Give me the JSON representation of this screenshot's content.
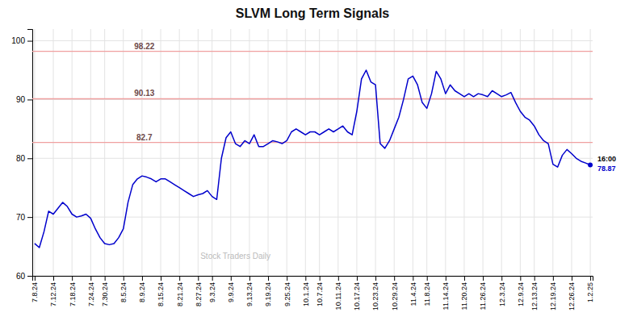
{
  "chart_data": {
    "type": "line",
    "title": "SLVM Long Term Signals",
    "categories": [
      "7.8.24",
      null,
      null,
      null,
      "7.12.24",
      null,
      null,
      null,
      "7.18.24",
      null,
      null,
      null,
      "7.24.24",
      null,
      null,
      "7.30.24",
      null,
      null,
      null,
      "8.5.24",
      null,
      null,
      null,
      "8.9.24",
      null,
      null,
      null,
      "8.15.24",
      null,
      null,
      null,
      "8.21.24",
      null,
      null,
      null,
      "8.27.24",
      null,
      null,
      "9.3.24",
      null,
      null,
      null,
      "9.9.24",
      null,
      null,
      null,
      "9.13.24",
      null,
      null,
      null,
      "9.19.24",
      null,
      null,
      null,
      "9.25.24",
      null,
      null,
      null,
      "10.1.24",
      null,
      null,
      "10.7.24",
      null,
      null,
      null,
      "10.11.24",
      null,
      null,
      null,
      "10.17.24",
      null,
      null,
      null,
      "10.23.24",
      null,
      null,
      null,
      "10.29.24",
      null,
      null,
      null,
      "11.4.24",
      null,
      null,
      "11.8.24",
      null,
      null,
      null,
      "11.14.24",
      null,
      null,
      null,
      "11.20.24",
      null,
      null,
      null,
      "11.26.24",
      null,
      null,
      null,
      "12.3.24",
      null,
      null,
      null,
      "12.9.24",
      null,
      null,
      "12.13.24",
      null,
      null,
      null,
      "12.19.24",
      null,
      null,
      null,
      "12.26.24",
      null,
      null,
      null,
      "1.2.25"
    ],
    "values": [
      65.5,
      64.8,
      67.5,
      71.0,
      70.5,
      71.5,
      72.5,
      71.8,
      70.5,
      70.0,
      70.2,
      70.5,
      69.8,
      68.0,
      66.5,
      65.5,
      65.3,
      65.5,
      66.5,
      68.0,
      72.5,
      75.5,
      76.5,
      77.0,
      76.8,
      76.5,
      76.0,
      76.5,
      76.5,
      76.0,
      75.5,
      75.0,
      74.5,
      74.0,
      73.5,
      73.8,
      74.0,
      74.5,
      73.5,
      73.0,
      80.0,
      83.5,
      84.5,
      82.5,
      82.0,
      83.0,
      82.5,
      84.0,
      82.0,
      82.0,
      82.5,
      83.0,
      82.8,
      82.5,
      83.0,
      84.5,
      85.0,
      84.5,
      84.0,
      84.5,
      84.5,
      84.0,
      84.5,
      85.0,
      84.5,
      85.0,
      85.5,
      84.5,
      84.0,
      88.0,
      93.5,
      95.0,
      93.0,
      92.5,
      82.5,
      81.7,
      83.0,
      85.0,
      87.0,
      90.0,
      93.5,
      94.0,
      92.5,
      89.5,
      88.5,
      91.0,
      94.8,
      93.5,
      91.0,
      92.5,
      91.5,
      91.0,
      90.5,
      91.0,
      90.5,
      91.0,
      90.8,
      90.5,
      91.5,
      91.0,
      90.5,
      90.8,
      91.2,
      89.5,
      88.0,
      87.0,
      86.5,
      85.5,
      84.0,
      83.0,
      82.5,
      79.0,
      78.5,
      80.5,
      81.5,
      80.8,
      80.0,
      79.5,
      79.2,
      78.87
    ],
    "color": "#0000cc",
    "ylim": [
      60,
      102
    ],
    "yticks": [
      60,
      70,
      80,
      90,
      100
    ],
    "grid": true,
    "reference_lines": [
      {
        "value": 98.22,
        "label": "98.22",
        "color": "#f0a0a0"
      },
      {
        "value": 90.13,
        "label": "90.13",
        "color": "#f0a0a0"
      },
      {
        "value": 82.7,
        "label": "82.7",
        "color": "#f0a0a0"
      }
    ],
    "last_point_label": "16:00",
    "watermark": "Stock Traders Daily"
  }
}
